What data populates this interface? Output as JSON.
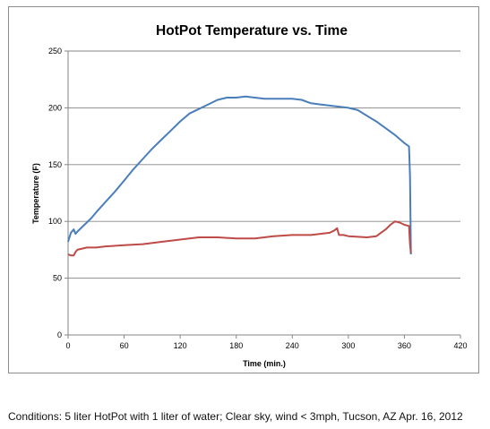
{
  "chart_data": {
    "type": "line",
    "title": "HotPot Temperature vs. Time",
    "xlabel": "Time (min.)",
    "ylabel": "Temperature (F)",
    "xlim": [
      0,
      420
    ],
    "ylim": [
      0,
      250
    ],
    "xticks": [
      0,
      60,
      120,
      180,
      240,
      300,
      360,
      420
    ],
    "yticks": [
      0,
      50,
      100,
      150,
      200,
      250
    ],
    "grid": "horizontal",
    "legend": "none",
    "series": [
      {
        "color": "#4a7ebb",
        "x": [
          0,
          3,
          6,
          8,
          10,
          15,
          20,
          25,
          30,
          40,
          50,
          60,
          70,
          80,
          90,
          100,
          110,
          120,
          130,
          140,
          150,
          160,
          170,
          180,
          190,
          200,
          210,
          220,
          230,
          240,
          250,
          260,
          270,
          280,
          290,
          300,
          310,
          320,
          330,
          340,
          350,
          360,
          365,
          366,
          367
        ],
        "y": [
          82,
          90,
          93,
          89,
          91,
          95,
          99,
          103,
          108,
          117,
          126,
          136,
          146,
          155,
          164,
          172,
          180,
          188,
          195,
          199,
          203,
          207,
          209,
          209,
          210,
          209,
          208,
          208,
          208,
          208,
          207,
          204,
          203,
          202,
          201,
          200,
          198,
          193,
          188,
          182,
          176,
          169,
          166,
          140,
          71
        ]
      },
      {
        "color": "#be4b48",
        "x": [
          0,
          3,
          6,
          8,
          10,
          20,
          30,
          40,
          60,
          80,
          100,
          120,
          140,
          160,
          180,
          200,
          220,
          240,
          260,
          280,
          285,
          288,
          290,
          295,
          300,
          320,
          330,
          340,
          345,
          350,
          355,
          360,
          365,
          366,
          367
        ],
        "y": [
          71,
          70,
          70,
          73,
          75,
          77,
          77,
          78,
          79,
          80,
          82,
          84,
          86,
          86,
          85,
          85,
          87,
          88,
          88,
          90,
          92,
          94,
          88,
          88,
          87,
          86,
          87,
          93,
          97,
          100,
          99,
          97,
          96,
          80,
          72
        ]
      }
    ]
  },
  "caption": "Conditions: 5 liter HotPot with 1 liter of water; Clear sky, wind < 3mph, Tucson, AZ Apr. 16, 2012"
}
